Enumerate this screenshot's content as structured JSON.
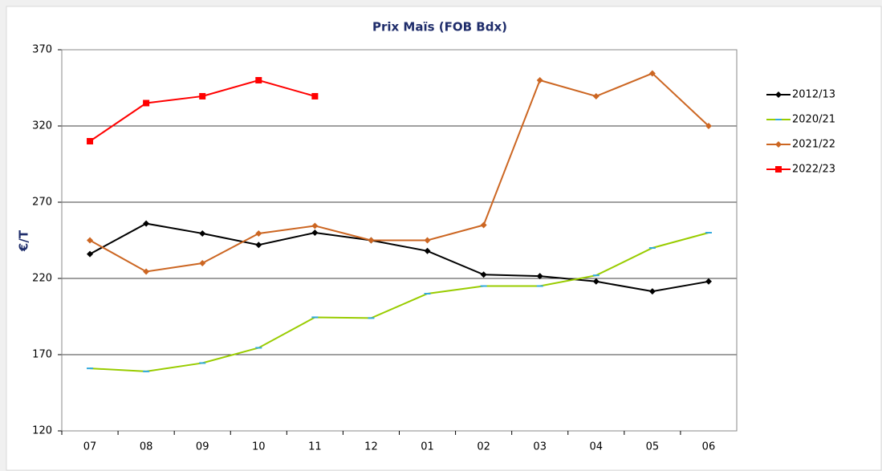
{
  "chart_data": {
    "type": "line",
    "title": "Prix Maïs (FOB Bdx)",
    "y_label": "€/T",
    "categories": [
      "07",
      "08",
      "09",
      "10",
      "11",
      "12",
      "01",
      "02",
      "03",
      "04",
      "05",
      "06"
    ],
    "series": [
      {
        "name": "2012/13",
        "color": "#000000",
        "marker": "diamond",
        "values": [
          236,
          256,
          249.5,
          242,
          250,
          245,
          238,
          222.5,
          221.5,
          218,
          211.5,
          218
        ]
      },
      {
        "name": "2020/21",
        "color": "#99cc00",
        "marker": "dash",
        "values": [
          161,
          159,
          164.5,
          174.5,
          194.5,
          194,
          210,
          215,
          215,
          222,
          240,
          250
        ]
      },
      {
        "name": "2021/22",
        "color": "#cc6622",
        "marker": "diamond",
        "values": [
          245,
          224.5,
          230,
          249.5,
          254.5,
          245,
          245,
          255,
          350,
          339.5,
          354.5,
          320
        ]
      },
      {
        "name": "2022/23",
        "color": "#ff0000",
        "marker": "square",
        "values": [
          310,
          335,
          339.5,
          350,
          339.5,
          null,
          null,
          null,
          null,
          null,
          null,
          null
        ]
      }
    ],
    "ylim": [
      120,
      370
    ],
    "yticks": [
      120,
      170,
      220,
      270,
      320,
      370
    ],
    "grid": true,
    "legend": "right"
  }
}
